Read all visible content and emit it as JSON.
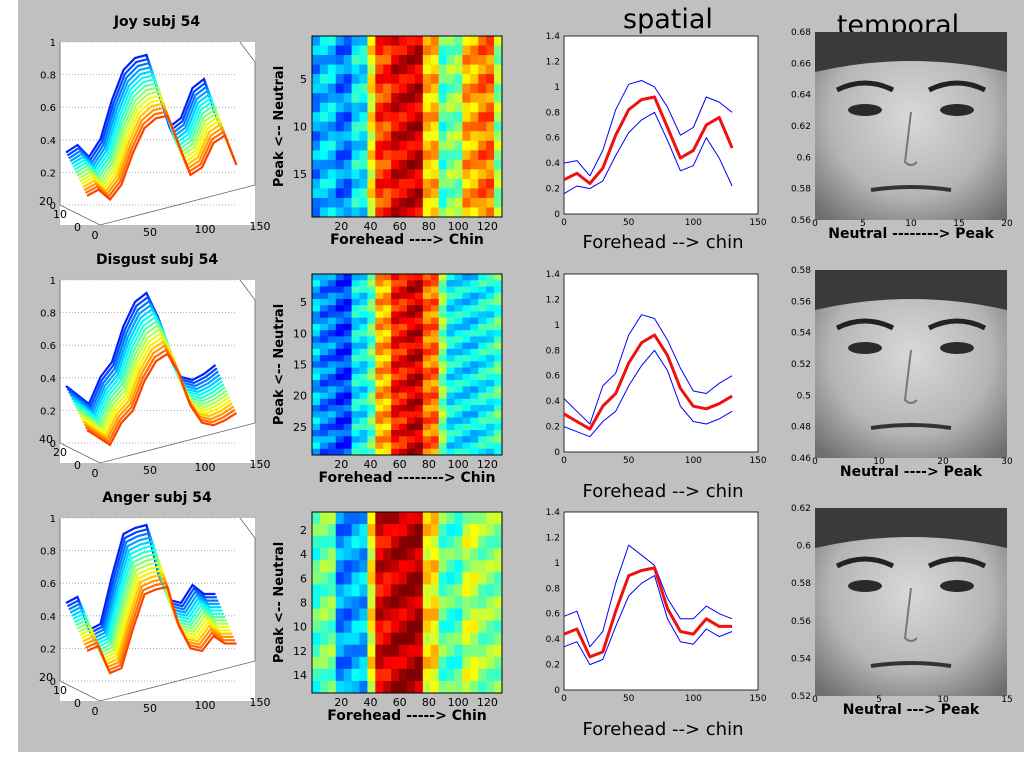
{
  "figure": {
    "background": "#c0c0c0",
    "red": "#ee1111",
    "blue": "#0000ff"
  },
  "column_titles": {
    "spatial": "spatial",
    "temporal": "temporal"
  },
  "rows": [
    {
      "key": "joy",
      "surface": {
        "title": "Joy subj 54",
        "z_ticks": [
          "0",
          "0.2",
          "0.4",
          "0.6",
          "0.8",
          "1"
        ],
        "x_ticks": [
          "0",
          "50",
          "100",
          "150"
        ],
        "y_ticks": [
          "20",
          "10",
          "0"
        ]
      },
      "heatmap": {
        "y_label": "Peak <-- Neutral",
        "y_ticks": [
          "5",
          "10",
          "15"
        ],
        "y_range": [
          1,
          19
        ],
        "x_ticks": [
          "20",
          "40",
          "60",
          "80",
          "100",
          "120"
        ],
        "x_label": "Forehead ----> Chin"
      },
      "spatial": {
        "xlim": [
          0,
          150
        ],
        "ylim": [
          0,
          1.4
        ],
        "x_ticks": [
          "0",
          "50",
          "100",
          "150"
        ],
        "y_ticks": [
          "0",
          "0.2",
          "0.4",
          "0.6",
          "0.8",
          "1",
          "1.2",
          "1.4"
        ],
        "x_label": "Forehead  -->  chin",
        "x": [
          0,
          10,
          20,
          30,
          40,
          50,
          60,
          70,
          80,
          90,
          100,
          110,
          120,
          130
        ],
        "mean": [
          0.27,
          0.32,
          0.24,
          0.36,
          0.62,
          0.82,
          0.9,
          0.92,
          0.68,
          0.44,
          0.5,
          0.7,
          0.76,
          0.52
        ],
        "upper": [
          0.4,
          0.42,
          0.3,
          0.5,
          0.82,
          1.02,
          1.05,
          1.0,
          0.84,
          0.62,
          0.68,
          0.92,
          0.88,
          0.8
        ],
        "lower": [
          0.16,
          0.22,
          0.2,
          0.26,
          0.46,
          0.64,
          0.74,
          0.8,
          0.58,
          0.34,
          0.38,
          0.6,
          0.44,
          0.22
        ]
      },
      "temporal": {
        "y_ticks": [
          "0.56",
          "0.58",
          "0.6",
          "0.62",
          "0.64",
          "0.66",
          "0.68"
        ],
        "x_ticks": [
          "0",
          "5",
          "10",
          "15",
          "20"
        ],
        "x_label": "Neutral --------> Peak"
      }
    },
    {
      "key": "disgust",
      "surface": {
        "title": "Disgust subj 54",
        "z_ticks": [
          "0",
          "0.2",
          "0.4",
          "0.6",
          "0.8",
          "1"
        ],
        "x_ticks": [
          "0",
          "50",
          "100",
          "150"
        ],
        "y_ticks": [
          "40",
          "20",
          "0"
        ]
      },
      "heatmap": {
        "y_label": "Peak <-- Neutral",
        "y_ticks": [
          "5",
          "10",
          "15",
          "20",
          "25"
        ],
        "y_range": [
          1,
          29
        ],
        "x_ticks": [
          "20",
          "40",
          "60",
          "80",
          "100",
          "120"
        ],
        "x_label": "Forehead --------> Chin"
      },
      "spatial": {
        "xlim": [
          0,
          150
        ],
        "ylim": [
          0,
          1.4
        ],
        "x_ticks": [
          "0",
          "50",
          "100",
          "150"
        ],
        "y_ticks": [
          "0",
          "0.2",
          "0.4",
          "0.6",
          "0.8",
          "1",
          "1.2",
          "1.4"
        ],
        "x_label": "Forehead  -->  chin",
        "x": [
          0,
          10,
          20,
          30,
          40,
          50,
          60,
          70,
          80,
          90,
          100,
          110,
          120,
          130
        ],
        "mean": [
          0.3,
          0.24,
          0.18,
          0.36,
          0.46,
          0.7,
          0.86,
          0.92,
          0.76,
          0.5,
          0.36,
          0.34,
          0.38,
          0.44
        ],
        "upper": [
          0.42,
          0.32,
          0.22,
          0.52,
          0.62,
          0.92,
          1.08,
          1.05,
          0.88,
          0.66,
          0.48,
          0.46,
          0.54,
          0.6
        ],
        "lower": [
          0.2,
          0.16,
          0.12,
          0.24,
          0.32,
          0.52,
          0.68,
          0.8,
          0.64,
          0.36,
          0.24,
          0.22,
          0.26,
          0.32
        ]
      },
      "temporal": {
        "y_ticks": [
          "0.46",
          "0.48",
          "0.5",
          "0.52",
          "0.54",
          "0.56",
          "0.58"
        ],
        "x_ticks": [
          "0",
          "10",
          "20",
          "30"
        ],
        "x_label": "Neutral ----> Peak"
      }
    },
    {
      "key": "anger",
      "surface": {
        "title": "Anger subj 54",
        "z_ticks": [
          "0",
          "0.2",
          "0.4",
          "0.6",
          "0.8",
          "1"
        ],
        "x_ticks": [
          "0",
          "50",
          "100",
          "150"
        ],
        "y_ticks": [
          "20",
          "10",
          "0"
        ]
      },
      "heatmap": {
        "y_label": "Peak <-- Neutral",
        "y_ticks": [
          "2",
          "4",
          "6",
          "8",
          "10",
          "12",
          "14"
        ],
        "y_range": [
          1,
          15
        ],
        "x_ticks": [
          "20",
          "40",
          "60",
          "80",
          "100",
          "120"
        ],
        "x_label": "Forehead -----> Chin"
      },
      "spatial": {
        "xlim": [
          0,
          150
        ],
        "ylim": [
          0,
          1.4
        ],
        "x_ticks": [
          "0",
          "50",
          "100",
          "150"
        ],
        "y_ticks": [
          "0",
          "0.2",
          "0.4",
          "0.6",
          "0.8",
          "1",
          "1.2",
          "1.4"
        ],
        "x_label": "Forehead  -->  chin",
        "x": [
          0,
          10,
          20,
          30,
          40,
          50,
          60,
          70,
          80,
          90,
          100,
          110,
          120,
          130
        ],
        "mean": [
          0.44,
          0.48,
          0.26,
          0.3,
          0.62,
          0.9,
          0.94,
          0.96,
          0.64,
          0.46,
          0.44,
          0.56,
          0.5,
          0.5
        ],
        "upper": [
          0.58,
          0.62,
          0.34,
          0.46,
          0.84,
          1.14,
          1.06,
          0.98,
          0.72,
          0.56,
          0.56,
          0.66,
          0.6,
          0.56
        ],
        "lower": [
          0.34,
          0.38,
          0.2,
          0.24,
          0.5,
          0.74,
          0.84,
          0.9,
          0.56,
          0.38,
          0.36,
          0.48,
          0.42,
          0.46
        ]
      },
      "temporal": {
        "y_ticks": [
          "0.52",
          "0.54",
          "0.56",
          "0.58",
          "0.6",
          "0.62"
        ],
        "x_ticks": [
          "0",
          "5",
          "10",
          "15"
        ],
        "x_label": "Neutral ---> Peak"
      }
    }
  ],
  "chart_data": [
    {
      "type": "line",
      "x": [
        0,
        10,
        20,
        30,
        40,
        50,
        60,
        70,
        80,
        90,
        100,
        110,
        120,
        130
      ],
      "xlabel": "Forehead  -->  chin",
      "xlim": [
        0,
        150
      ],
      "ylim": [
        0,
        1.4
      ],
      "series": [
        {
          "values": [
            0.27,
            0.32,
            0.24,
            0.36,
            0.62,
            0.82,
            0.9,
            0.92,
            0.68,
            0.44,
            0.5,
            0.7,
            0.76,
            0.52
          ]
        },
        {
          "values": [
            0.4,
            0.42,
            0.3,
            0.5,
            0.82,
            1.02,
            1.05,
            1.0,
            0.84,
            0.62,
            0.68,
            0.92,
            0.88,
            0.8
          ]
        },
        {
          "values": [
            0.16,
            0.22,
            0.2,
            0.26,
            0.46,
            0.64,
            0.74,
            0.8,
            0.58,
            0.34,
            0.38,
            0.6,
            0.44,
            0.22
          ]
        }
      ]
    },
    {
      "type": "line",
      "x": [
        0,
        10,
        20,
        30,
        40,
        50,
        60,
        70,
        80,
        90,
        100,
        110,
        120,
        130
      ],
      "xlabel": "Forehead  -->  chin",
      "xlim": [
        0,
        150
      ],
      "ylim": [
        0,
        1.4
      ],
      "series": [
        {
          "values": [
            0.3,
            0.24,
            0.18,
            0.36,
            0.46,
            0.7,
            0.86,
            0.92,
            0.76,
            0.5,
            0.36,
            0.34,
            0.38,
            0.44
          ]
        },
        {
          "values": [
            0.42,
            0.32,
            0.22,
            0.52,
            0.62,
            0.92,
            1.08,
            1.05,
            0.88,
            0.66,
            0.48,
            0.46,
            0.54,
            0.6
          ]
        },
        {
          "values": [
            0.2,
            0.16,
            0.12,
            0.24,
            0.32,
            0.52,
            0.68,
            0.8,
            0.64,
            0.36,
            0.24,
            0.22,
            0.26,
            0.32
          ]
        }
      ]
    },
    {
      "type": "line",
      "x": [
        0,
        10,
        20,
        30,
        40,
        50,
        60,
        70,
        80,
        90,
        100,
        110,
        120,
        130
      ],
      "xlabel": "Forehead  -->  chin",
      "xlim": [
        0,
        150
      ],
      "ylim": [
        0,
        1.4
      ],
      "series": [
        {
          "values": [
            0.44,
            0.48,
            0.26,
            0.3,
            0.62,
            0.9,
            0.94,
            0.96,
            0.64,
            0.46,
            0.44,
            0.56,
            0.5,
            0.5
          ]
        },
        {
          "values": [
            0.58,
            0.62,
            0.34,
            0.46,
            0.84,
            1.14,
            1.06,
            0.98,
            0.72,
            0.56,
            0.56,
            0.66,
            0.6,
            0.56
          ]
        },
        {
          "values": [
            0.34,
            0.38,
            0.2,
            0.24,
            0.5,
            0.74,
            0.84,
            0.9,
            0.56,
            0.38,
            0.36,
            0.48,
            0.42,
            0.46
          ]
        }
      ]
    }
  ]
}
